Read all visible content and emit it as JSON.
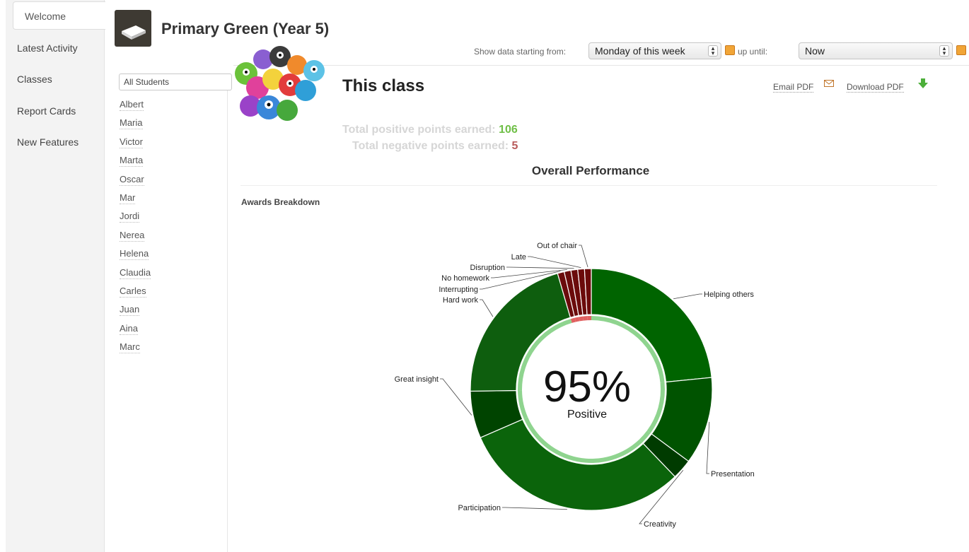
{
  "nav": {
    "items": [
      {
        "label": "Welcome",
        "active": true
      },
      {
        "label": "Latest Activity"
      },
      {
        "label": "Classes"
      },
      {
        "label": "Report Cards"
      },
      {
        "label": "New Features"
      }
    ]
  },
  "header": {
    "class_title": "Primary Green (Year 5)",
    "icon": "book-icon"
  },
  "date_filter": {
    "start_label": "Show data starting from:",
    "start_value": "Monday of this week",
    "end_label": "up until:",
    "end_value": "Now",
    "calendar_icon": "calendar-icon"
  },
  "students": {
    "filter_value": "All Students",
    "names": [
      "Albert",
      "Maria",
      "Victor",
      "Marta",
      "Oscar",
      "Mar",
      "Jordi",
      "Nerea",
      "Helena",
      "Claudia",
      "Carles",
      "Juan",
      "Aina",
      "Marc"
    ]
  },
  "main": {
    "section_title": "This class",
    "email_pdf": "Email PDF",
    "download_pdf": "Download PDF",
    "positive_label": "Total positive points earned:",
    "positive_value": "106",
    "negative_label": "Total negative points earned:",
    "negative_value": "5",
    "overall_title": "Overall Performance",
    "awards_title": "Awards Breakdown"
  },
  "colors": {
    "positive_dark": "#004d00",
    "positive": "#0b640b",
    "negative": "#6b0b0b",
    "ring_positive": "#8fd48f",
    "ring_negative": "#e06060"
  },
  "chart_data": {
    "type": "pie",
    "title": "Awards Breakdown",
    "center_value": "95%",
    "center_label": "Positive",
    "slices": [
      {
        "label": "Helping others",
        "value": 26,
        "kind": "positive"
      },
      {
        "label": "Presentation",
        "value": 13,
        "kind": "positive"
      },
      {
        "label": "Creativity",
        "value": 3,
        "kind": "positive"
      },
      {
        "label": "Participation",
        "value": 34,
        "kind": "positive"
      },
      {
        "label": "Great insight",
        "value": 7,
        "kind": "positive"
      },
      {
        "label": "Hard work",
        "value": 23,
        "kind": "positive"
      },
      {
        "label": "Interrupting",
        "value": 1,
        "kind": "negative"
      },
      {
        "label": "No homework",
        "value": 1,
        "kind": "negative"
      },
      {
        "label": "Disruption",
        "value": 1,
        "kind": "negative"
      },
      {
        "label": "Late",
        "value": 1,
        "kind": "negative"
      },
      {
        "label": "Out of chair",
        "value": 1,
        "kind": "negative"
      }
    ],
    "positive_total": 106,
    "negative_total": 5
  }
}
